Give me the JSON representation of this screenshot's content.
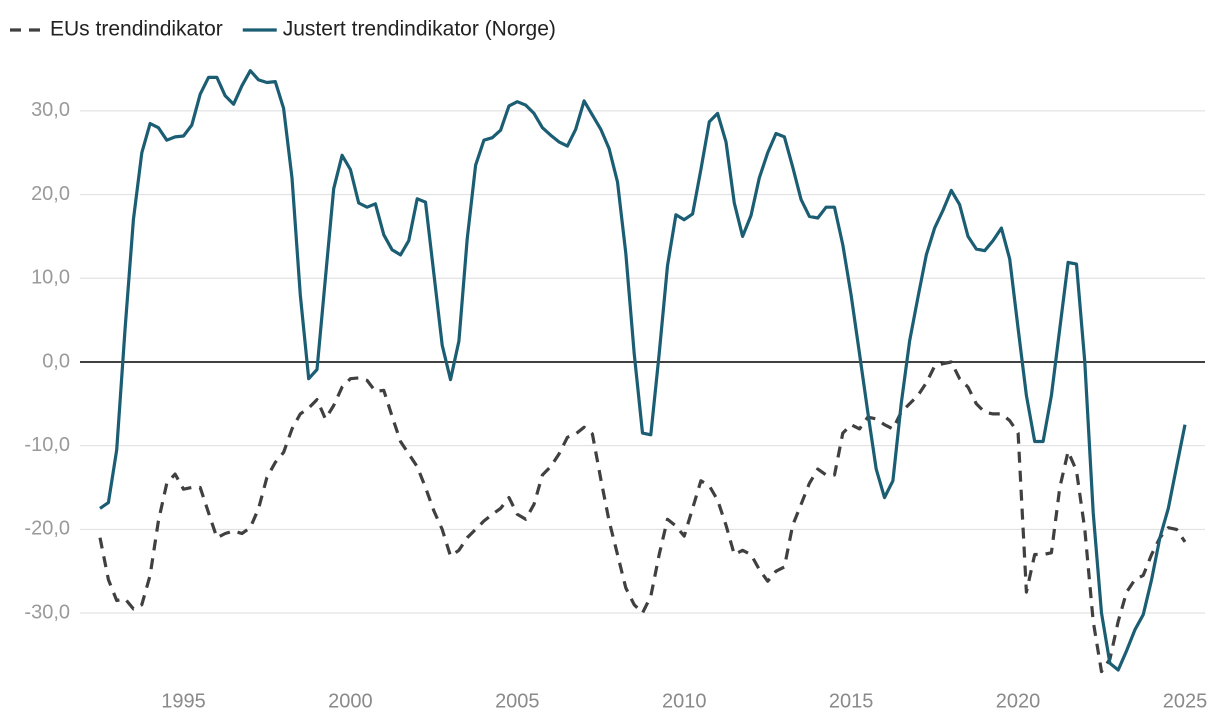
{
  "chart_data": {
    "type": "line",
    "x": [
      1992.5,
      1992.75,
      1993,
      1993.25,
      1993.5,
      1993.75,
      1994,
      1994.25,
      1994.5,
      1994.75,
      1995,
      1995.25,
      1995.5,
      1995.75,
      1996,
      1996.25,
      1996.5,
      1996.75,
      1997,
      1997.25,
      1997.5,
      1997.75,
      1998,
      1998.25,
      1998.5,
      1998.75,
      1999,
      1999.25,
      1999.5,
      1999.75,
      2000,
      2000.25,
      2000.5,
      2000.75,
      2001,
      2001.25,
      2001.5,
      2001.75,
      2002,
      2002.25,
      2002.5,
      2002.75,
      2003,
      2003.25,
      2003.5,
      2003.75,
      2004,
      2004.25,
      2004.5,
      2004.75,
      2005,
      2005.25,
      2005.5,
      2005.75,
      2006,
      2006.25,
      2006.5,
      2006.75,
      2007,
      2007.25,
      2007.5,
      2007.75,
      2008,
      2008.25,
      2008.5,
      2008.75,
      2009,
      2009.25,
      2009.5,
      2009.75,
      2010,
      2010.25,
      2010.5,
      2010.75,
      2011,
      2011.25,
      2011.5,
      2011.75,
      2012,
      2012.25,
      2012.5,
      2012.75,
      2013,
      2013.25,
      2013.5,
      2013.75,
      2014,
      2014.25,
      2014.5,
      2014.75,
      2015,
      2015.25,
      2015.5,
      2015.75,
      2016,
      2016.25,
      2016.5,
      2016.75,
      2017,
      2017.25,
      2017.5,
      2017.75,
      2018,
      2018.25,
      2018.5,
      2018.75,
      2019,
      2019.25,
      2019.5,
      2019.75,
      2020,
      2020.25,
      2020.5,
      2020.75,
      2021,
      2021.25,
      2021.5,
      2021.75,
      2022,
      2022.25,
      2022.5,
      2022.75,
      2023,
      2023.25,
      2023.5,
      2023.75,
      2024,
      2024.25,
      2024.5,
      2024.75,
      2025
    ],
    "series": [
      {
        "name": "EUs trendindikator",
        "color": "#404040",
        "line_style": "dashed",
        "values": [
          -21,
          -26,
          -28.5,
          -28.3,
          -29.5,
          -29,
          -25.5,
          -19,
          -14.5,
          -13.4,
          -15.2,
          -15,
          -15,
          -18,
          -21,
          -20.5,
          -20.2,
          -20.5,
          -19.8,
          -17.5,
          -13.8,
          -12,
          -10.8,
          -8,
          -6.2,
          -5.5,
          -4.5,
          -6.8,
          -5.2,
          -3,
          -2,
          -1.9,
          -2.2,
          -3.5,
          -3.4,
          -6.5,
          -9.5,
          -11,
          -12.5,
          -15,
          -17.8,
          -20,
          -23.2,
          -22.5,
          -21,
          -20,
          -19,
          -18.2,
          -17.5,
          -16.2,
          -18.2,
          -18.8,
          -17,
          -13.5,
          -12.5,
          -11,
          -9,
          -8.6,
          -7.8,
          -8.6,
          -14,
          -19,
          -23,
          -27,
          -29,
          -30,
          -28,
          -23,
          -18.8,
          -19.6,
          -20.8,
          -17.5,
          -14.2,
          -14.8,
          -16.5,
          -19.5,
          -23,
          -22.5,
          -23,
          -24.8,
          -26.2,
          -25,
          -24.5,
          -19.5,
          -17,
          -14.5,
          -12.8,
          -13.5,
          -13.5,
          -8.5,
          -7.5,
          -8,
          -6.6,
          -6.8,
          -7.5,
          -8,
          -6,
          -5,
          -4,
          -2.5,
          -0.5,
          -0.2,
          0,
          -2,
          -3,
          -5,
          -6,
          -6.2,
          -6.2,
          -7,
          -8.5,
          -27.5,
          -23,
          -23,
          -22.8,
          -15,
          -10.7,
          -13,
          -20,
          -31,
          -37,
          -35.5,
          -31,
          -27.5,
          -26,
          -25.5,
          -23,
          -21,
          -19.8,
          -20,
          -21.5
        ]
      },
      {
        "name": "Justert trendindikator (Norge)",
        "color": "#1b5e74",
        "line_style": "solid",
        "values": [
          -17.5,
          -16.8,
          -10.5,
          4,
          17,
          25,
          28.5,
          28,
          26.5,
          26.9,
          27,
          28.3,
          32,
          34,
          34,
          31.8,
          30.8,
          33,
          34.8,
          33.7,
          33.4,
          33.5,
          30.3,
          22,
          8,
          -2,
          -0.9,
          10,
          20.7,
          24.7,
          23,
          19,
          18.5,
          18.9,
          15.2,
          13.4,
          12.8,
          14.5,
          19.5,
          19.1,
          10.5,
          2,
          -2.1,
          2.5,
          14.7,
          23.5,
          26.5,
          26.8,
          27.7,
          30.6,
          31.1,
          30.7,
          29.7,
          28,
          27.1,
          26.3,
          25.8,
          27.8,
          31.2,
          29.5,
          27.8,
          25.5,
          21.5,
          13,
          1,
          -8.5,
          -8.7,
          1,
          11.5,
          17.6,
          17,
          17.7,
          23,
          28.7,
          29.7,
          26.3,
          19,
          15,
          17.5,
          22,
          25,
          27.3,
          26.9,
          23.3,
          19.4,
          17.4,
          17.2,
          18.5,
          18.5,
          14,
          8,
          1,
          -6,
          -12.8,
          -16.2,
          -14.2,
          -5,
          2.5,
          7.7,
          12.8,
          16,
          18.1,
          20.5,
          18.8,
          15,
          13.5,
          13.3,
          14.5,
          16,
          12.3,
          4,
          -4,
          -9.5,
          -9.5,
          -4,
          4,
          11.9,
          11.7,
          0,
          -18,
          -30,
          -36,
          -36.8,
          -34.5,
          -32,
          -30.2,
          -26,
          -21,
          -17.5,
          -12.5,
          -7.5
        ]
      }
    ],
    "xlim": [
      1991.9,
      2025.6
    ],
    "xticks": [
      1995,
      2000,
      2005,
      2010,
      2015,
      2020,
      2025
    ],
    "ylim": [
      -38,
      36
    ],
    "yticks": [
      {
        "value": -30,
        "label": "-30,0"
      },
      {
        "value": -20,
        "label": "-20,0"
      },
      {
        "value": -10,
        "label": "-10,0"
      },
      {
        "value": 0,
        "label": "0,0"
      },
      {
        "value": 10,
        "label": "10,0"
      },
      {
        "value": 20,
        "label": "20,0"
      },
      {
        "value": 30,
        "label": "30,0"
      }
    ],
    "grid": true,
    "legend": "top-left"
  }
}
